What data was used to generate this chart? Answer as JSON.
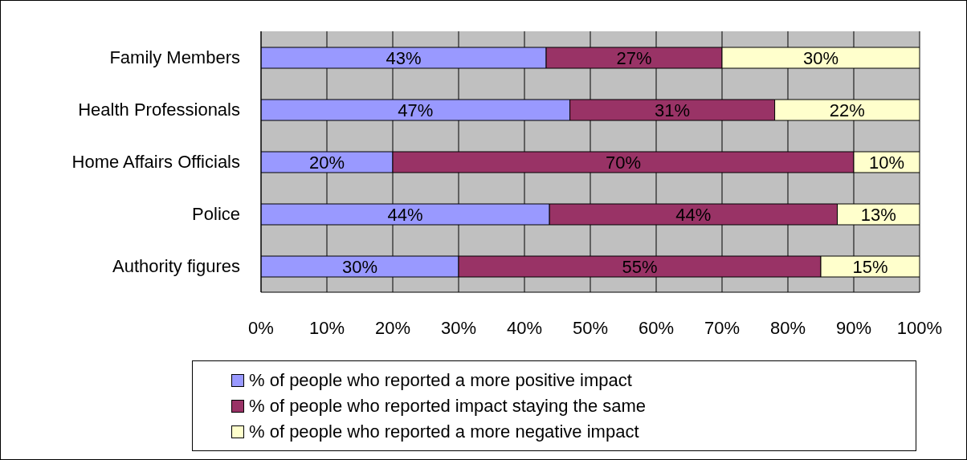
{
  "chart_data": {
    "type": "bar",
    "orientation": "horizontal",
    "stacked": true,
    "categories": [
      "Family Members",
      "Health Professionals",
      "Home Affairs Officials",
      "Police",
      "Authority figures"
    ],
    "series": [
      {
        "name": "% of people who reported a more positive impact",
        "color": "#9999ff",
        "values": [
          43.3,
          46.9,
          20,
          43.8,
          30
        ],
        "value_labels": [
          "43%",
          "47%",
          "20%",
          "44%",
          "30%"
        ]
      },
      {
        "name": "% of people who reported impact staying the same",
        "color": "#993366",
        "values": [
          26.7,
          31.1,
          70,
          43.7,
          55
        ],
        "value_labels": [
          "27%",
          "31%",
          "70%",
          "44%",
          "55%"
        ]
      },
      {
        "name": "% of people who reported a more negative impact",
        "color": "#ffffcc",
        "values": [
          30,
          22,
          10,
          12.5,
          15
        ],
        "value_labels": [
          "30%",
          "22%",
          "10%",
          "13%",
          "15%"
        ]
      }
    ],
    "xlim": [
      0,
      100
    ],
    "xticks": [
      {
        "value": 0,
        "label": "0%"
      },
      {
        "value": 10,
        "label": "10%"
      },
      {
        "value": 20,
        "label": "20%"
      },
      {
        "value": 30,
        "label": "30%"
      },
      {
        "value": 40,
        "label": "40%"
      },
      {
        "value": 50,
        "label": "50%"
      },
      {
        "value": 60,
        "label": "60%"
      },
      {
        "value": 70,
        "label": "70%"
      },
      {
        "value": 80,
        "label": "80%"
      },
      {
        "value": 90,
        "label": "90%"
      },
      {
        "value": 100,
        "label": "100%"
      }
    ],
    "grid": "x",
    "legend": "bottom"
  }
}
